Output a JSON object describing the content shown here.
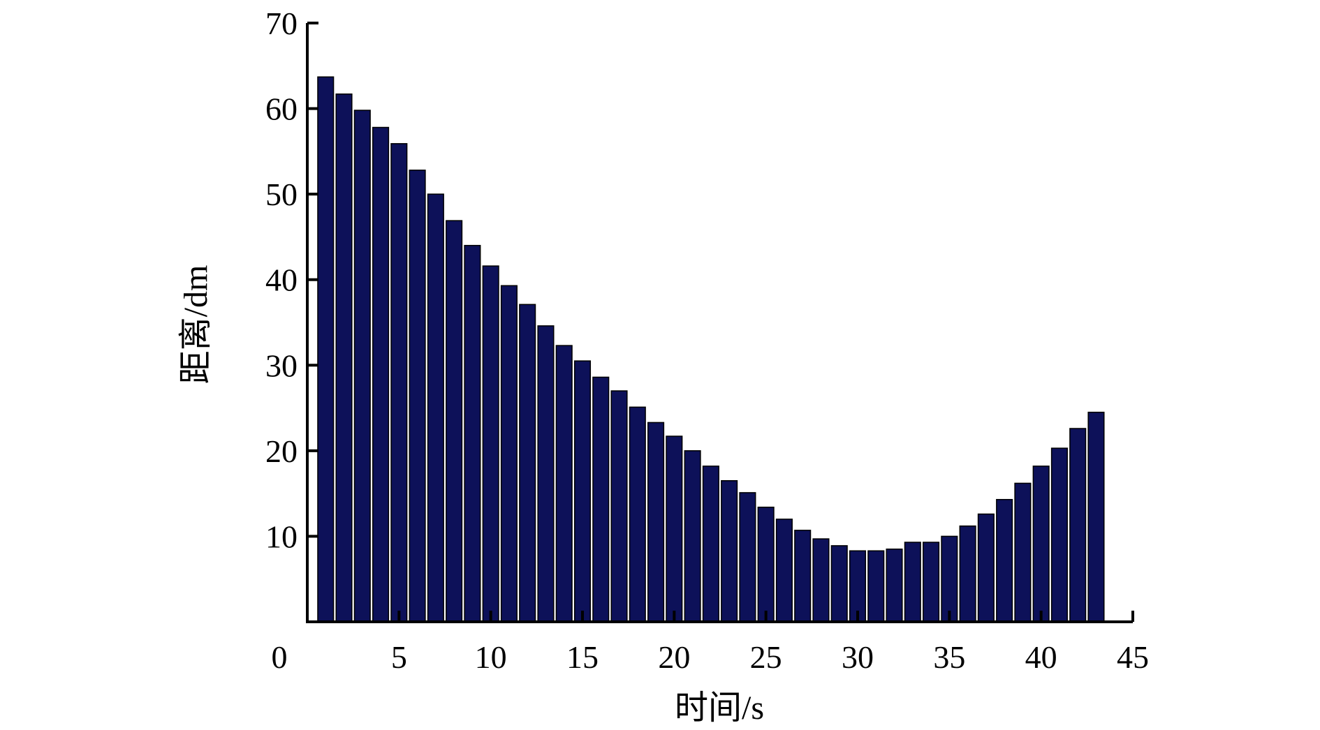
{
  "chart_data": {
    "type": "bar",
    "title": "",
    "xlabel": "时间/s",
    "ylabel": "距离/dm",
    "xlim": [
      0,
      45
    ],
    "ylim": [
      0,
      70
    ],
    "x_ticks": [
      0,
      5,
      10,
      15,
      20,
      25,
      30,
      35,
      40,
      45
    ],
    "y_ticks": [
      10,
      20,
      30,
      40,
      50,
      60,
      70
    ],
    "grid": false,
    "legend": "none",
    "bar_color": "#0d1159",
    "x": [
      1,
      2,
      3,
      4,
      5,
      6,
      7,
      8,
      9,
      10,
      11,
      12,
      13,
      14,
      15,
      16,
      17,
      18,
      19,
      20,
      21,
      22,
      23,
      24,
      25,
      26,
      27,
      28,
      29,
      30,
      31,
      32,
      33,
      34,
      35,
      36,
      37,
      38,
      39,
      40,
      41,
      42,
      43
    ],
    "values": [
      63.7,
      61.7,
      59.8,
      57.8,
      55.9,
      52.8,
      50.0,
      46.9,
      44.0,
      41.6,
      39.3,
      37.1,
      34.6,
      32.3,
      30.5,
      28.6,
      27.0,
      25.1,
      23.3,
      21.7,
      20.0,
      18.2,
      16.5,
      15.1,
      13.4,
      12.0,
      10.7,
      9.7,
      8.9,
      8.3,
      8.3,
      8.5,
      9.3,
      9.3,
      10.0,
      11.2,
      12.6,
      14.3,
      16.2,
      18.2,
      20.3,
      22.6,
      24.5
    ]
  }
}
